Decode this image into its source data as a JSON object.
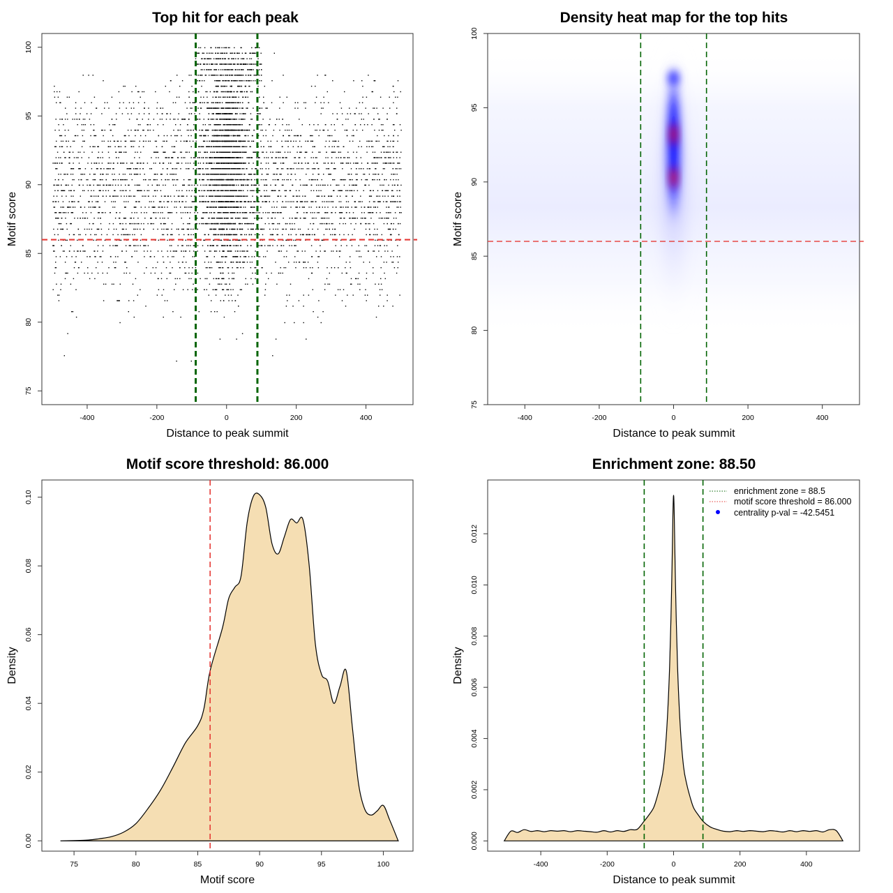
{
  "chart_data": [
    {
      "type": "scatter",
      "title": "Top hit for each peak",
      "xlabel": "Distance to peak summit",
      "ylabel": "Motif score",
      "xlim": [
        -530,
        535
      ],
      "ylim": [
        74,
        101
      ],
      "xticks": [
        -400,
        -200,
        0,
        200,
        400
      ],
      "xtick_labels": [
        "-400",
        "-200",
        "0",
        "200",
        "400"
      ],
      "yticks": [
        75,
        80,
        85,
        90,
        95,
        100
      ],
      "ytick_labels": [
        "75",
        "80",
        "85",
        "90",
        "95",
        "100"
      ],
      "points_description": "dense cloud of top motif hits; x in [-500, 500], scores mostly 80–100, strongly concentrated near x = 0 and scores 86–100",
      "vlines": {
        "values": [
          -88.5,
          88.5
        ],
        "color": "#006400",
        "style": "dashed"
      },
      "hlines": {
        "values": [
          86.0
        ],
        "color": "#e53935",
        "style": "dashed"
      }
    },
    {
      "type": "heatmap",
      "title": "Density heat map for the top hits",
      "xlabel": "Distance to peak summit",
      "ylabel": "Motif score",
      "xlim": [
        -500,
        500
      ],
      "ylim": [
        75,
        100
      ],
      "xticks": [
        -400,
        -200,
        0,
        200,
        400
      ],
      "xtick_labels": [
        "-400",
        "-200",
        "0",
        "200",
        "400"
      ],
      "yticks": [
        75,
        80,
        85,
        90,
        95,
        100
      ],
      "ytick_labels": [
        "75",
        "80",
        "85",
        "90",
        "95",
        "100"
      ],
      "colors": [
        "#ffffff",
        "#0000ff",
        "#ff0000"
      ],
      "hotspots": [
        {
          "x": 0,
          "y": 93.2,
          "level": "red"
        },
        {
          "x": 0,
          "y": 90.3,
          "level": "red"
        },
        {
          "x": 0,
          "y": 97,
          "level": "blue"
        }
      ],
      "vlines": {
        "values": [
          -88.5,
          88.5
        ],
        "color": "#006400",
        "style": "dashed"
      },
      "hlines": {
        "values": [
          86.0
        ],
        "color": "#e53935",
        "style": "dashed"
      }
    },
    {
      "type": "area",
      "title": "Motif score threshold: 86.000",
      "xlabel": "Motif score",
      "ylabel": "Density",
      "xlim": [
        72.4,
        102.4
      ],
      "ylim": [
        -0.003,
        0.105
      ],
      "xticks": [
        75,
        80,
        85,
        90,
        95,
        100
      ],
      "xtick_labels": [
        "75",
        "80",
        "85",
        "90",
        "95",
        "100"
      ],
      "yticks": [
        0,
        0.02,
        0.04,
        0.06,
        0.08,
        0.1
      ],
      "ytick_labels": [
        "0.00",
        "0.02",
        "0.04",
        "0.06",
        "0.08",
        "0.10"
      ],
      "fill": "#f5deb3",
      "x": [
        73.9,
        76,
        77,
        78,
        79,
        80,
        81,
        82,
        83,
        84,
        85,
        85.5,
        86,
        87,
        87.5,
        88,
        88.5,
        89,
        89.5,
        90,
        90.5,
        91,
        91.5,
        92,
        92.5,
        93,
        93.5,
        94,
        94.5,
        95,
        95.5,
        96,
        96.5,
        97,
        97.5,
        98,
        98.5,
        99,
        99.5,
        100,
        100.5,
        101.2
      ],
      "values": [
        0.0,
        0.0002,
        0.0006,
        0.0012,
        0.0025,
        0.005,
        0.0095,
        0.0148,
        0.0215,
        0.0285,
        0.0335,
        0.0385,
        0.0495,
        0.062,
        0.0705,
        0.0738,
        0.077,
        0.0928,
        0.1003,
        0.1007,
        0.097,
        0.0865,
        0.0835,
        0.0885,
        0.0935,
        0.0925,
        0.0935,
        0.0805,
        0.0575,
        0.0485,
        0.0465,
        0.04,
        0.045,
        0.0495,
        0.033,
        0.0165,
        0.0092,
        0.0075,
        0.0087,
        0.0103,
        0.0062,
        0.0
      ]
    },
    {
      "type": "area",
      "title": "Enrichment zone: 88.50",
      "xlabel": "Distance to peak summit",
      "ylabel": "Density",
      "xlim": [
        -560,
        560
      ],
      "ylim": [
        -0.0004,
        0.0141
      ],
      "xticks": [
        -400,
        -200,
        0,
        200,
        400
      ],
      "xtick_labels": [
        "-400",
        "-200",
        "0",
        "200",
        "400"
      ],
      "yticks": [
        0,
        0.002,
        0.004,
        0.006,
        0.008,
        0.01,
        0.012
      ],
      "ytick_labels": [
        "0.000",
        "0.002",
        "0.004",
        "0.006",
        "0.008",
        "0.010",
        "0.012"
      ],
      "fill": "#f5deb3",
      "x": [
        -510,
        -490,
        -470,
        -450,
        -430,
        -410,
        -390,
        -370,
        -350,
        -330,
        -310,
        -290,
        -270,
        -250,
        -230,
        -210,
        -190,
        -170,
        -150,
        -130,
        -110,
        -90,
        -75,
        -60,
        -50,
        -40,
        -30,
        -20,
        -12,
        -6,
        -2,
        0,
        2,
        6,
        12,
        20,
        30,
        40,
        50,
        60,
        75,
        90,
        110,
        130,
        150,
        170,
        190,
        210,
        230,
        250,
        270,
        290,
        310,
        330,
        350,
        370,
        390,
        410,
        430,
        450,
        470,
        490,
        510
      ],
      "values": [
        0.0,
        0.00038,
        0.00033,
        0.00044,
        0.00037,
        0.0004,
        0.00036,
        0.0004,
        0.00038,
        0.0004,
        0.00036,
        0.0004,
        0.00038,
        0.00036,
        0.00034,
        0.0004,
        0.00035,
        0.0004,
        0.00037,
        0.00044,
        0.00045,
        0.00075,
        0.001,
        0.0013,
        0.0017,
        0.0022,
        0.0029,
        0.0045,
        0.0068,
        0.0098,
        0.0127,
        0.0135,
        0.0127,
        0.0098,
        0.0068,
        0.0045,
        0.0029,
        0.0022,
        0.0017,
        0.0013,
        0.001,
        0.00075,
        0.00055,
        0.00045,
        0.00038,
        0.00036,
        0.0004,
        0.00037,
        0.0004,
        0.00038,
        0.00036,
        0.0004,
        0.00038,
        0.00035,
        0.0004,
        0.00036,
        0.0004,
        0.00037,
        0.0004,
        0.00035,
        0.00044,
        0.0004,
        0.0
      ],
      "vlines": {
        "values": [
          -88.5,
          88.5
        ],
        "color": "#006400",
        "style": "dashed"
      },
      "legend": {
        "position": "top-right",
        "entries": [
          {
            "label": "enrichment zone = 88.5",
            "color": "#006400",
            "kind": "dotted-line"
          },
          {
            "label": "motif score threshold = 86.000",
            "color": "#e53935",
            "kind": "dotted-line"
          },
          {
            "label": "centrality p-val = -42.5451",
            "color": "#0000ff",
            "kind": "point"
          }
        ]
      }
    }
  ]
}
